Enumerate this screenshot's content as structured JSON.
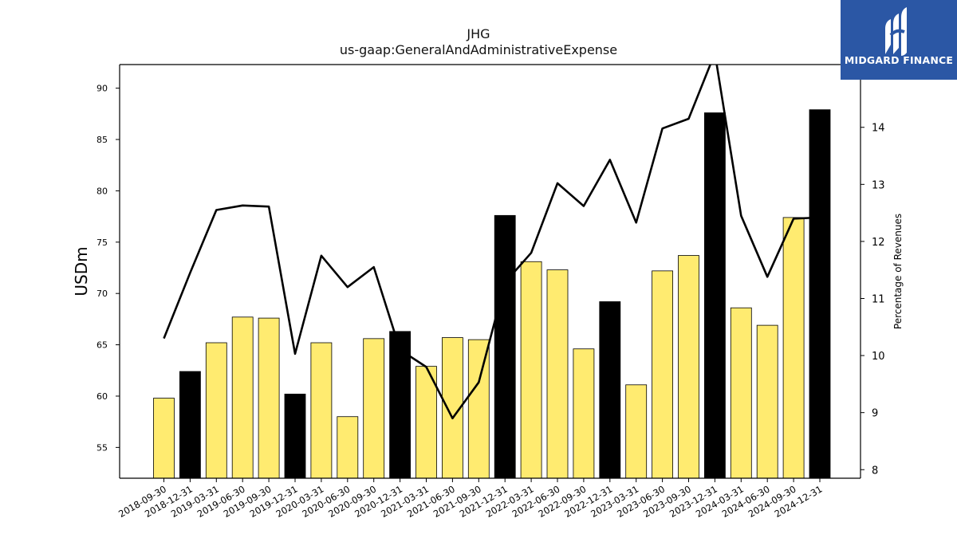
{
  "header": {
    "title": "JHG",
    "subtitle": "us-gaap:GeneralAndAdministrativeExpense"
  },
  "logo": {
    "text": "MIDGARD FINANCE"
  },
  "chart_data": {
    "type": "bar",
    "title": "JHG",
    "subtitle": "us-gaap:GeneralAndAdministrativeExpense",
    "ylabel": "USDm",
    "y2label": "Percentage of Revenues",
    "ylim": [
      52,
      92.3
    ],
    "y2lim": [
      7.85,
      15.1
    ],
    "yticks": [
      55,
      60,
      65,
      70,
      75,
      80,
      85,
      90
    ],
    "y2ticks": [
      8,
      9,
      10,
      11,
      12,
      13,
      14
    ],
    "categories": [
      "2018-09-30",
      "2018-12-31",
      "2019-03-31",
      "2019-06-30",
      "2019-09-30",
      "2019-12-31",
      "2020-03-31",
      "2020-06-30",
      "2020-09-30",
      "2020-12-31",
      "2021-03-31",
      "2021-06-30",
      "2021-09-30",
      "2021-12-31",
      "2022-03-31",
      "2022-06-30",
      "2022-09-30",
      "2022-12-31",
      "2023-03-31",
      "2023-06-30",
      "2023-09-30",
      "2023-12-31",
      "2024-03-31",
      "2024-06-30",
      "2024-09-30",
      "2024-12-31"
    ],
    "series": [
      {
        "type": "bar",
        "values": [
          59.8,
          62.4,
          65.2,
          67.7,
          67.6,
          60.2,
          65.2,
          58.0,
          65.6,
          66.3,
          62.9,
          65.7,
          65.5,
          77.6,
          73.1,
          72.3,
          64.6,
          69.2,
          61.1,
          72.2,
          73.7,
          87.6,
          68.6,
          66.9,
          77.4,
          87.9
        ],
        "quarter_end_flags": [
          false,
          true,
          false,
          false,
          false,
          true,
          false,
          false,
          false,
          true,
          false,
          false,
          false,
          true,
          false,
          false,
          false,
          true,
          false,
          false,
          false,
          true,
          false,
          false,
          false,
          true
        ]
      },
      {
        "type": "line",
        "axis": "right",
        "values": [
          10.3,
          11.45,
          12.55,
          12.63,
          12.61,
          10.03,
          11.75,
          11.2,
          11.55,
          10.1,
          9.8,
          8.9,
          9.53,
          11.28,
          11.8,
          13.02,
          12.62,
          13.43,
          12.33,
          13.98,
          14.15,
          15.3,
          12.45,
          11.38,
          12.4,
          12.42
        ]
      }
    ],
    "colors": {
      "bar_fill": "#ffeb70",
      "bar_fill_q4": "#000000",
      "bar_edge": "#000000",
      "line": "#000000",
      "logo_bg": "#2b57a5"
    },
    "grid": false,
    "legend": "none"
  }
}
